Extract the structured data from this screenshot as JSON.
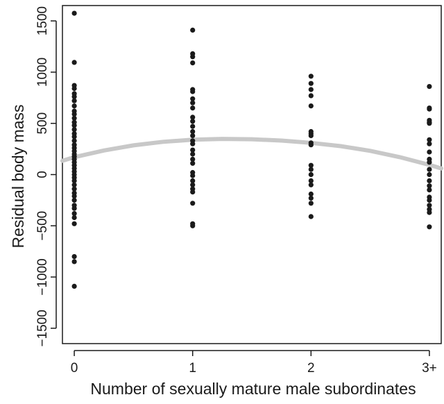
{
  "chart_data": {
    "type": "scatter",
    "title": "",
    "xlabel": "Number of sexually mature male subordinates",
    "ylabel": "Residual body mass",
    "categories": [
      "0",
      "1",
      "2",
      "3+"
    ],
    "x_ticks": [
      0,
      1,
      2,
      3
    ],
    "y_ticks": [
      -1500,
      -1000,
      -500,
      0,
      500,
      1000,
      1500
    ],
    "y_tick_labels": [
      "−1500",
      "−1000",
      "−500",
      "0",
      "500",
      "1000",
      "1500"
    ],
    "xlim": [
      -0.1,
      3.1
    ],
    "ylim": [
      -1650,
      1650
    ],
    "grid": false,
    "series": [
      {
        "name": "",
        "color": "#1a1a1a",
        "points": [
          [
            0,
            1575
          ],
          [
            0,
            1095
          ],
          [
            0,
            870
          ],
          [
            0,
            840
          ],
          [
            0,
            790
          ],
          [
            0,
            760
          ],
          [
            0,
            720
          ],
          [
            0,
            670
          ],
          [
            0,
            620
          ],
          [
            0,
            590
          ],
          [
            0,
            550
          ],
          [
            0,
            510
          ],
          [
            0,
            480
          ],
          [
            0,
            440
          ],
          [
            0,
            400
          ],
          [
            0,
            370
          ],
          [
            0,
            330
          ],
          [
            0,
            290
          ],
          [
            0,
            260
          ],
          [
            0,
            230
          ],
          [
            0,
            200
          ],
          [
            0,
            175
          ],
          [
            0,
            150
          ],
          [
            0,
            120
          ],
          [
            0,
            90
          ],
          [
            0,
            60
          ],
          [
            0,
            30
          ],
          [
            0,
            0
          ],
          [
            0,
            -30
          ],
          [
            0,
            -60
          ],
          [
            0,
            -100
          ],
          [
            0,
            -140
          ],
          [
            0,
            -180
          ],
          [
            0,
            -210
          ],
          [
            0,
            -250
          ],
          [
            0,
            -300
          ],
          [
            0,
            -330
          ],
          [
            0,
            -380
          ],
          [
            0,
            -420
          ],
          [
            0,
            -480
          ],
          [
            0,
            -800
          ],
          [
            0,
            -850
          ],
          [
            0,
            -1090
          ],
          [
            1,
            1410
          ],
          [
            1,
            1180
          ],
          [
            1,
            1150
          ],
          [
            1,
            1090
          ],
          [
            1,
            830
          ],
          [
            1,
            810
          ],
          [
            1,
            740
          ],
          [
            1,
            700
          ],
          [
            1,
            650
          ],
          [
            1,
            560
          ],
          [
            1,
            520
          ],
          [
            1,
            470
          ],
          [
            1,
            420
          ],
          [
            1,
            380
          ],
          [
            1,
            330
          ],
          [
            1,
            300
          ],
          [
            1,
            240
          ],
          [
            1,
            200
          ],
          [
            1,
            150
          ],
          [
            1,
            110
          ],
          [
            1,
            20
          ],
          [
            1,
            -10
          ],
          [
            1,
            -60
          ],
          [
            1,
            -100
          ],
          [
            1,
            -140
          ],
          [
            1,
            -170
          ],
          [
            1,
            -280
          ],
          [
            1,
            -480
          ],
          [
            1,
            -500
          ],
          [
            2,
            960
          ],
          [
            2,
            890
          ],
          [
            2,
            830
          ],
          [
            2,
            770
          ],
          [
            2,
            670
          ],
          [
            2,
            420
          ],
          [
            2,
            400
          ],
          [
            2,
            380
          ],
          [
            2,
            310
          ],
          [
            2,
            290
          ],
          [
            2,
            90
          ],
          [
            2,
            50
          ],
          [
            2,
            0
          ],
          [
            2,
            -60
          ],
          [
            2,
            -100
          ],
          [
            2,
            -190
          ],
          [
            2,
            -230
          ],
          [
            2,
            -280
          ],
          [
            2,
            -410
          ],
          [
            3,
            860
          ],
          [
            3,
            650
          ],
          [
            3,
            640
          ],
          [
            3,
            530
          ],
          [
            3,
            510
          ],
          [
            3,
            500
          ],
          [
            3,
            340
          ],
          [
            3,
            300
          ],
          [
            3,
            220
          ],
          [
            3,
            150
          ],
          [
            3,
            120
          ],
          [
            3,
            50
          ],
          [
            3,
            0
          ],
          [
            3,
            -60
          ],
          [
            3,
            -110
          ],
          [
            3,
            -150
          ],
          [
            3,
            -220
          ],
          [
            3,
            -250
          ],
          [
            3,
            -300
          ],
          [
            3,
            -340
          ],
          [
            3,
            -370
          ],
          [
            3,
            -510
          ]
        ]
      }
    ],
    "fit_curve": {
      "color": "#c8c8c8",
      "x": [
        -0.1,
        0,
        0.25,
        0.5,
        0.75,
        1,
        1.25,
        1.5,
        1.75,
        2,
        2.25,
        2.5,
        2.75,
        3,
        3.1
      ],
      "y": [
        135,
        170,
        235,
        285,
        320,
        340,
        348,
        345,
        332,
        310,
        278,
        232,
        170,
        95,
        60
      ]
    }
  }
}
